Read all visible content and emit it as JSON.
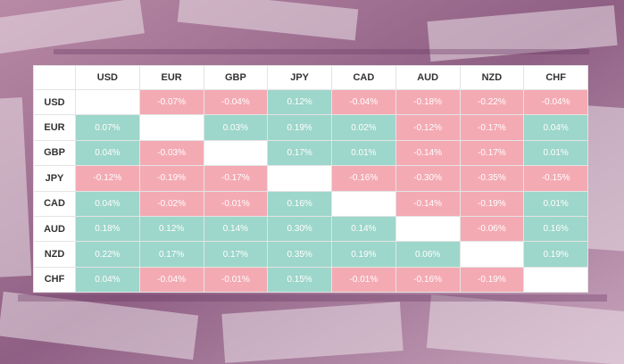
{
  "table": {
    "columns": [
      "USD",
      "EUR",
      "GBP",
      "JPY",
      "CAD",
      "AUD",
      "NZD",
      "CHF"
    ],
    "rows": [
      {
        "label": "USD",
        "cells": [
          null,
          "-0.07%",
          "-0.04%",
          "0.12%",
          "-0.04%",
          "-0.18%",
          "-0.22%",
          "-0.04%"
        ]
      },
      {
        "label": "EUR",
        "cells": [
          "0.07%",
          null,
          "0.03%",
          "0.19%",
          "0.02%",
          "-0.12%",
          "-0.17%",
          "0.04%"
        ]
      },
      {
        "label": "GBP",
        "cells": [
          "0.04%",
          "-0.03%",
          null,
          "0.17%",
          "0.01%",
          "-0.14%",
          "-0.17%",
          "0.01%"
        ]
      },
      {
        "label": "JPY",
        "cells": [
          "-0.12%",
          "-0.19%",
          "-0.17%",
          null,
          "-0.16%",
          "-0.30%",
          "-0.35%",
          "-0.15%"
        ]
      },
      {
        "label": "CAD",
        "cells": [
          "0.04%",
          "-0.02%",
          "-0.01%",
          "0.16%",
          null,
          "-0.14%",
          "-0.19%",
          "0.01%"
        ]
      },
      {
        "label": "AUD",
        "cells": [
          "0.18%",
          "0.12%",
          "0.14%",
          "0.30%",
          "0.14%",
          null,
          "-0.06%",
          "0.16%"
        ]
      },
      {
        "label": "NZD",
        "cells": [
          "0.22%",
          "0.17%",
          "0.17%",
          "0.35%",
          "0.19%",
          "0.06%",
          null,
          "0.19%"
        ]
      },
      {
        "label": "CHF",
        "cells": [
          "0.04%",
          "-0.04%",
          "-0.01%",
          "0.15%",
          "-0.01%",
          "-0.16%",
          "-0.19%",
          null
        ]
      }
    ]
  }
}
